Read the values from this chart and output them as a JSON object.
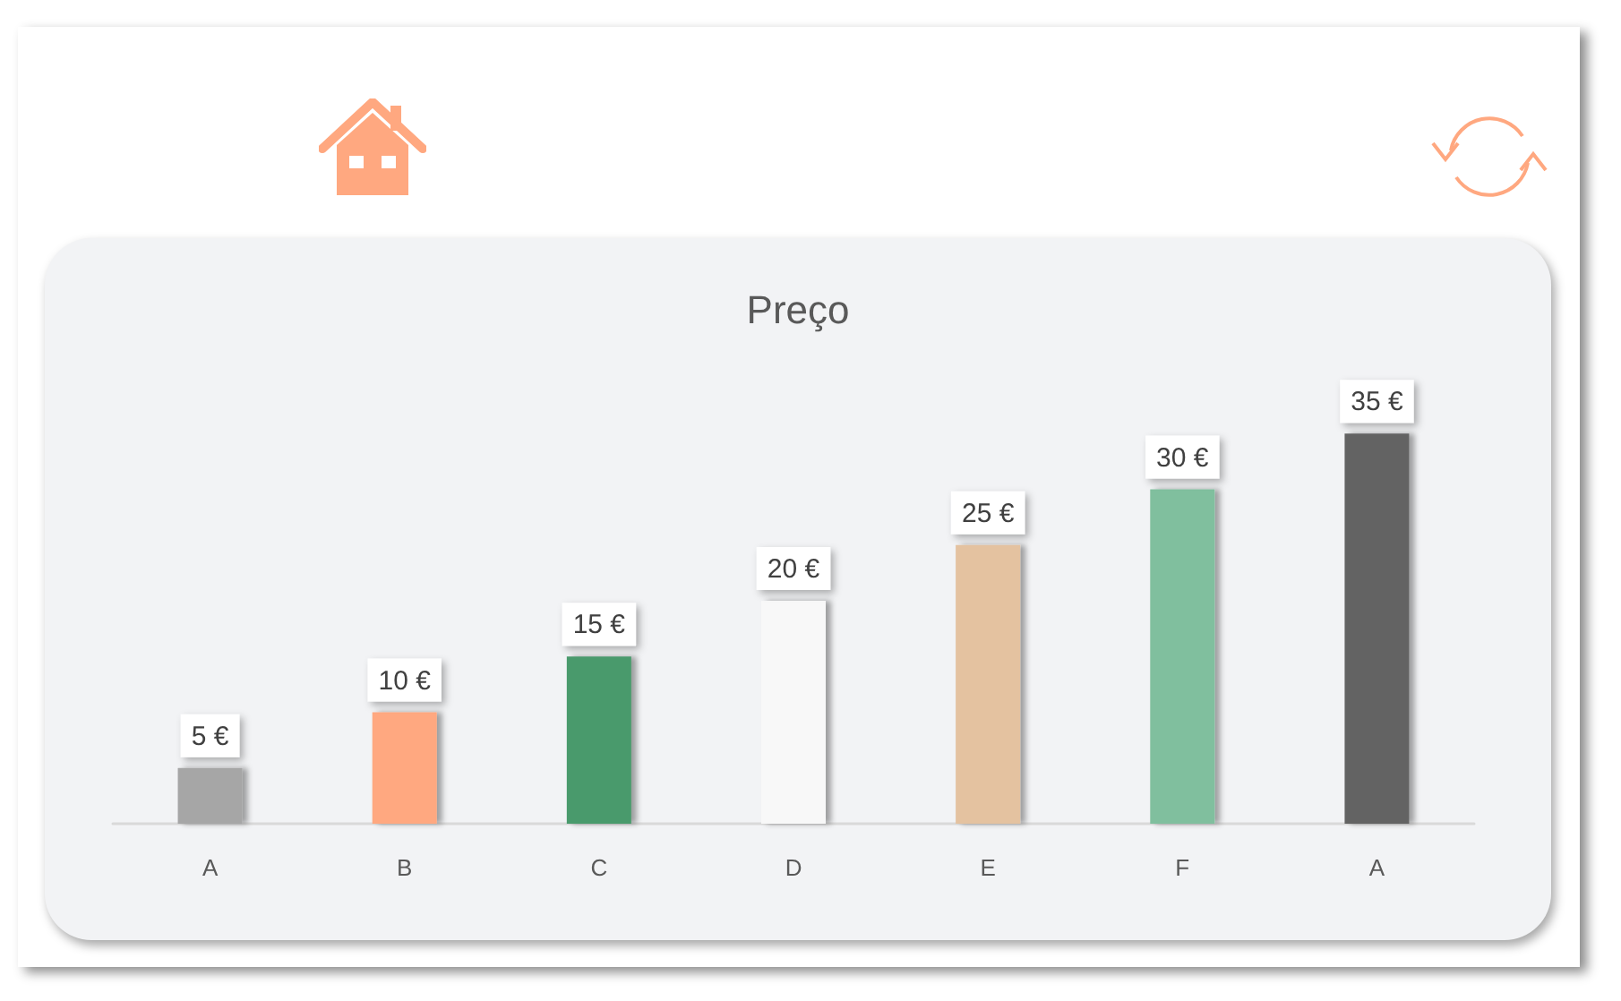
{
  "chart_data": {
    "type": "bar",
    "title": "Preço",
    "categories": [
      "A",
      "B",
      "C",
      "D",
      "E",
      "F",
      "A"
    ],
    "values": [
      5,
      10,
      15,
      20,
      25,
      30,
      35
    ],
    "value_labels": [
      "5 €",
      "10 €",
      "15 €",
      "20 €",
      "25 €",
      "30 €",
      "35 €"
    ],
    "colors": [
      "#a6a6a6",
      "#ffa880",
      "#4a9a6c",
      "#f8f8f8",
      "#e4c2a0",
      "#80bf9e",
      "#636363"
    ],
    "tick_labels": "x"
  }
}
